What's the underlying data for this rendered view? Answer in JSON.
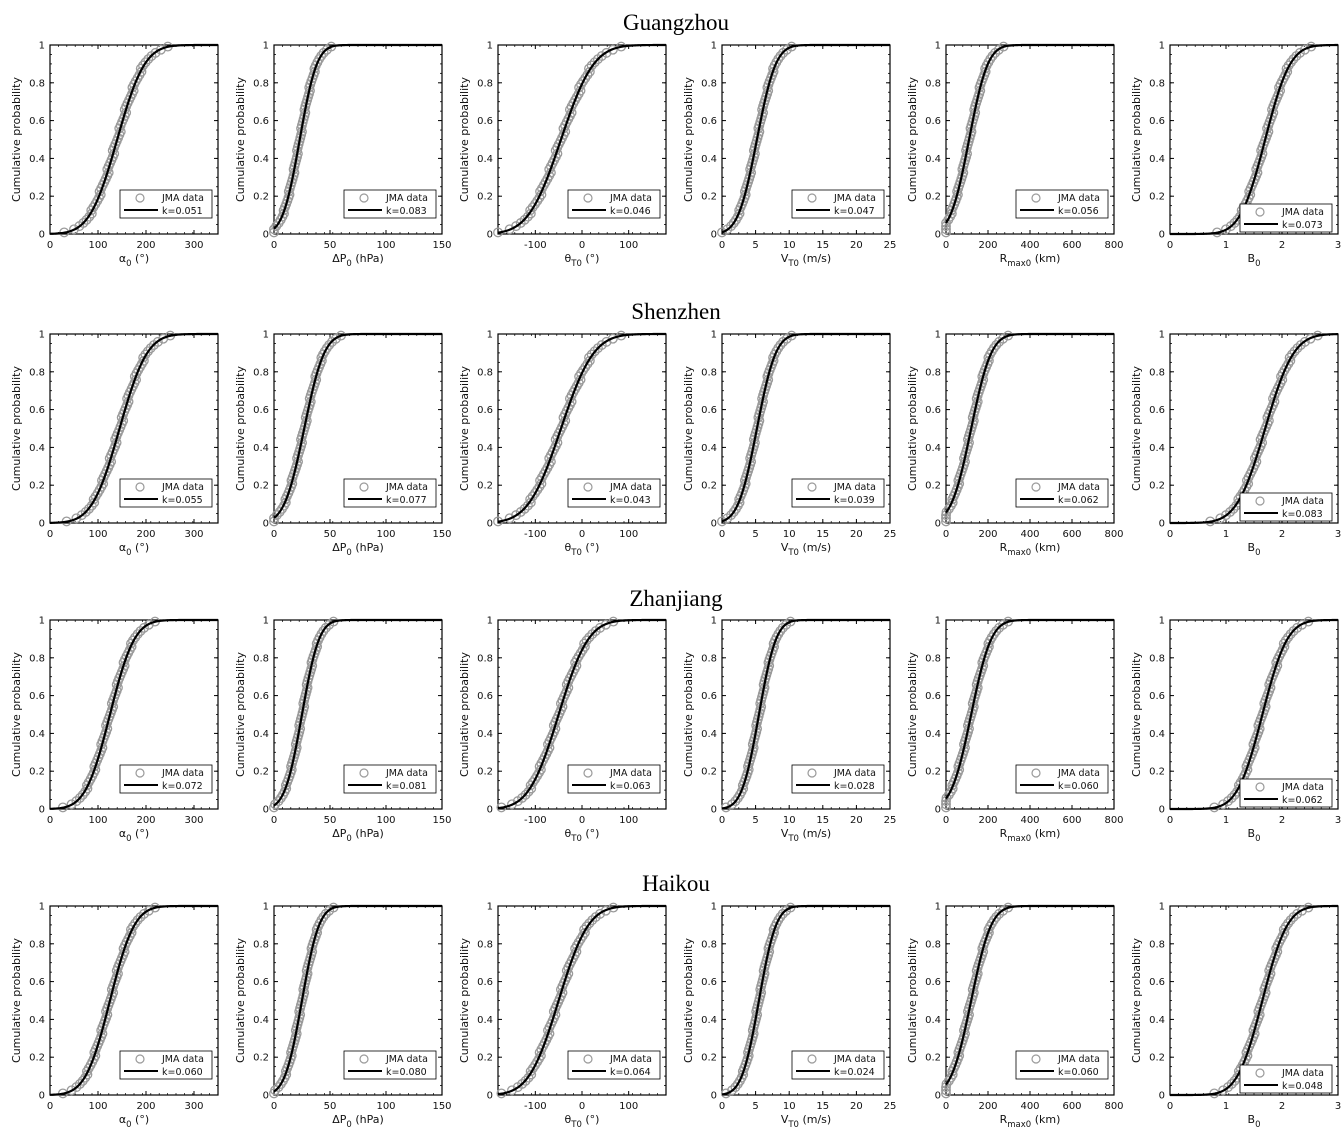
{
  "figure": {
    "ylabel": "Cumulative probability",
    "legend_data_label": "JMA data",
    "colors": {
      "data_marker": "#9a9a9a",
      "fit_line": "#000000",
      "axes": "#000000"
    },
    "yticks": [
      "0",
      "0.2",
      "0.4",
      "0.6",
      "0.8",
      "1"
    ]
  },
  "chart_data": [
    {
      "city": "Guangzhou",
      "type": "line",
      "panels": [
        {
          "param": "alpha0",
          "xlabel": "α0 (°)",
          "xlim": [
            0,
            350
          ],
          "xticks": [
            "0",
            "100",
            "200",
            "300"
          ],
          "k": "k=0.051",
          "mu": 140,
          "sigma": 45,
          "legend_pos": "bottom-right"
        },
        {
          "param": "dP0",
          "xlabel": "ΔP0 (hPa)",
          "xlim": [
            0,
            150
          ],
          "xticks": [
            "0",
            "50",
            "100",
            "150"
          ],
          "k": "k=0.083",
          "mu": 23,
          "sigma": 12,
          "legend_pos": "bottom-right"
        },
        {
          "param": "theta_T0",
          "xlabel": "θT0 (°)",
          "xlim": [
            -180,
            180
          ],
          "xticks": [
            "-100",
            "0",
            "100"
          ],
          "k": "k=0.046",
          "mu": -45,
          "sigma": 55,
          "legend_pos": "bottom-right"
        },
        {
          "param": "V_T0",
          "xlabel": "VT0 (m/s)",
          "xlim": [
            0,
            25
          ],
          "xticks": [
            "0",
            "5",
            "10",
            "15",
            "20",
            "25"
          ],
          "k": "k=0.047",
          "mu": 5.2,
          "sigma": 2.2,
          "legend_pos": "bottom-right"
        },
        {
          "param": "R_max0",
          "xlabel": "Rmax0 (km)",
          "xlim": [
            0,
            800
          ],
          "xticks": [
            "0",
            "200",
            "400",
            "600",
            "800"
          ],
          "k": "k=0.056",
          "mu": 110,
          "sigma": 70,
          "legend_pos": "bottom-right"
        },
        {
          "param": "B0",
          "xlabel": "B0",
          "xlim": [
            0,
            3
          ],
          "xticks": [
            "0",
            "1",
            "2",
            "3"
          ],
          "k": "k=0.073",
          "mu": 1.7,
          "sigma": 0.35,
          "legend_pos": "lower-right"
        }
      ]
    },
    {
      "city": "Shenzhen",
      "type": "line",
      "panels": [
        {
          "param": "alpha0",
          "xlabel": "α0 (°)",
          "xlim": [
            0,
            350
          ],
          "xticks": [
            "0",
            "100",
            "200",
            "300"
          ],
          "k": "k=0.055",
          "mu": 145,
          "sigma": 45,
          "legend_pos": "bottom-right"
        },
        {
          "param": "dP0",
          "xlabel": "ΔP0 (hPa)",
          "xlim": [
            0,
            150
          ],
          "xticks": [
            "0",
            "50",
            "100",
            "150"
          ],
          "k": "k=0.077",
          "mu": 27,
          "sigma": 14,
          "legend_pos": "bottom-right"
        },
        {
          "param": "theta_T0",
          "xlabel": "θT0 (°)",
          "xlim": [
            -180,
            180
          ],
          "xticks": [
            "-100",
            "0",
            "100"
          ],
          "k": "k=0.043",
          "mu": -45,
          "sigma": 55,
          "legend_pos": "bottom-right"
        },
        {
          "param": "V_T0",
          "xlabel": "VT0 (m/s)",
          "xlim": [
            0,
            25
          ],
          "xticks": [
            "0",
            "5",
            "10",
            "15",
            "20",
            "25"
          ],
          "k": "k=0.039",
          "mu": 5.2,
          "sigma": 2.2,
          "legend_pos": "bottom-right"
        },
        {
          "param": "R_max0",
          "xlabel": "Rmax0 (km)",
          "xlim": [
            0,
            800
          ],
          "xticks": [
            "0",
            "200",
            "400",
            "600",
            "800"
          ],
          "k": "k=0.062",
          "mu": 120,
          "sigma": 75,
          "legend_pos": "bottom-right"
        },
        {
          "param": "B0",
          "xlabel": "B0",
          "xlim": [
            0,
            3
          ],
          "xticks": [
            "0",
            "1",
            "2",
            "3"
          ],
          "k": "k=0.083",
          "mu": 1.7,
          "sigma": 0.4,
          "legend_pos": "lower-right"
        }
      ]
    },
    {
      "city": "Zhanjiang",
      "type": "line",
      "panels": [
        {
          "param": "alpha0",
          "xlabel": "α0 (°)",
          "xlim": [
            0,
            350
          ],
          "xticks": [
            "0",
            "100",
            "200",
            "300"
          ],
          "k": "k=0.072",
          "mu": 125,
          "sigma": 40,
          "legend_pos": "bottom-right"
        },
        {
          "param": "dP0",
          "xlabel": "ΔP0 (hPa)",
          "xlim": [
            0,
            150
          ],
          "xticks": [
            "0",
            "50",
            "100",
            "150"
          ],
          "k": "k=0.081",
          "mu": 25,
          "sigma": 12,
          "legend_pos": "bottom-right"
        },
        {
          "param": "theta_T0",
          "xlabel": "θT0 (°)",
          "xlim": [
            -180,
            180
          ],
          "xticks": [
            "-100",
            "0",
            "100"
          ],
          "k": "k=0.063",
          "mu": -50,
          "sigma": 50,
          "legend_pos": "bottom-right"
        },
        {
          "param": "V_T0",
          "xlabel": "VT0 (m/s)",
          "xlim": [
            0,
            25
          ],
          "xticks": [
            "0",
            "5",
            "10",
            "15",
            "20",
            "25"
          ],
          "k": "k=0.028",
          "mu": 5.5,
          "sigma": 2.0,
          "legend_pos": "bottom-right"
        },
        {
          "param": "R_max0",
          "xlabel": "Rmax0 (km)",
          "xlim": [
            0,
            800
          ],
          "xticks": [
            "0",
            "200",
            "400",
            "600",
            "800"
          ],
          "k": "k=0.060",
          "mu": 120,
          "sigma": 75,
          "legend_pos": "bottom-right"
        },
        {
          "param": "B0",
          "xlabel": "B0",
          "xlim": [
            0,
            3
          ],
          "xticks": [
            "0",
            "1",
            "2",
            "3"
          ],
          "k": "k=0.062",
          "mu": 1.65,
          "sigma": 0.35,
          "legend_pos": "lower-right"
        }
      ]
    },
    {
      "city": "Haikou",
      "type": "line",
      "panels": [
        {
          "param": "alpha0",
          "xlabel": "α0 (°)",
          "xlim": [
            0,
            350
          ],
          "xticks": [
            "0",
            "100",
            "200",
            "300"
          ],
          "k": "k=0.060",
          "mu": 125,
          "sigma": 40,
          "legend_pos": "bottom-right"
        },
        {
          "param": "dP0",
          "xlabel": "ΔP0 (hPa)",
          "xlim": [
            0,
            150
          ],
          "xticks": [
            "0",
            "50",
            "100",
            "150"
          ],
          "k": "k=0.080",
          "mu": 25,
          "sigma": 12,
          "legend_pos": "bottom-right"
        },
        {
          "param": "theta_T0",
          "xlabel": "θT0 (°)",
          "xlim": [
            -180,
            180
          ],
          "xticks": [
            "-100",
            "0",
            "100"
          ],
          "k": "k=0.064",
          "mu": -50,
          "sigma": 50,
          "legend_pos": "bottom-right"
        },
        {
          "param": "V_T0",
          "xlabel": "VT0 (m/s)",
          "xlim": [
            0,
            25
          ],
          "xticks": [
            "0",
            "5",
            "10",
            "15",
            "20",
            "25"
          ],
          "k": "k=0.024",
          "mu": 5.5,
          "sigma": 2.0,
          "legend_pos": "bottom-right"
        },
        {
          "param": "R_max0",
          "xlabel": "Rmax0 (km)",
          "xlim": [
            0,
            800
          ],
          "xticks": [
            "0",
            "200",
            "400",
            "600",
            "800"
          ],
          "k": "k=0.060",
          "mu": 120,
          "sigma": 75,
          "legend_pos": "bottom-right"
        },
        {
          "param": "B0",
          "xlabel": "B0",
          "xlim": [
            0,
            3
          ],
          "xticks": [
            "0",
            "1",
            "2",
            "3"
          ],
          "k": "k=0.048",
          "mu": 1.65,
          "sigma": 0.35,
          "legend_pos": "lower-right"
        }
      ]
    }
  ]
}
